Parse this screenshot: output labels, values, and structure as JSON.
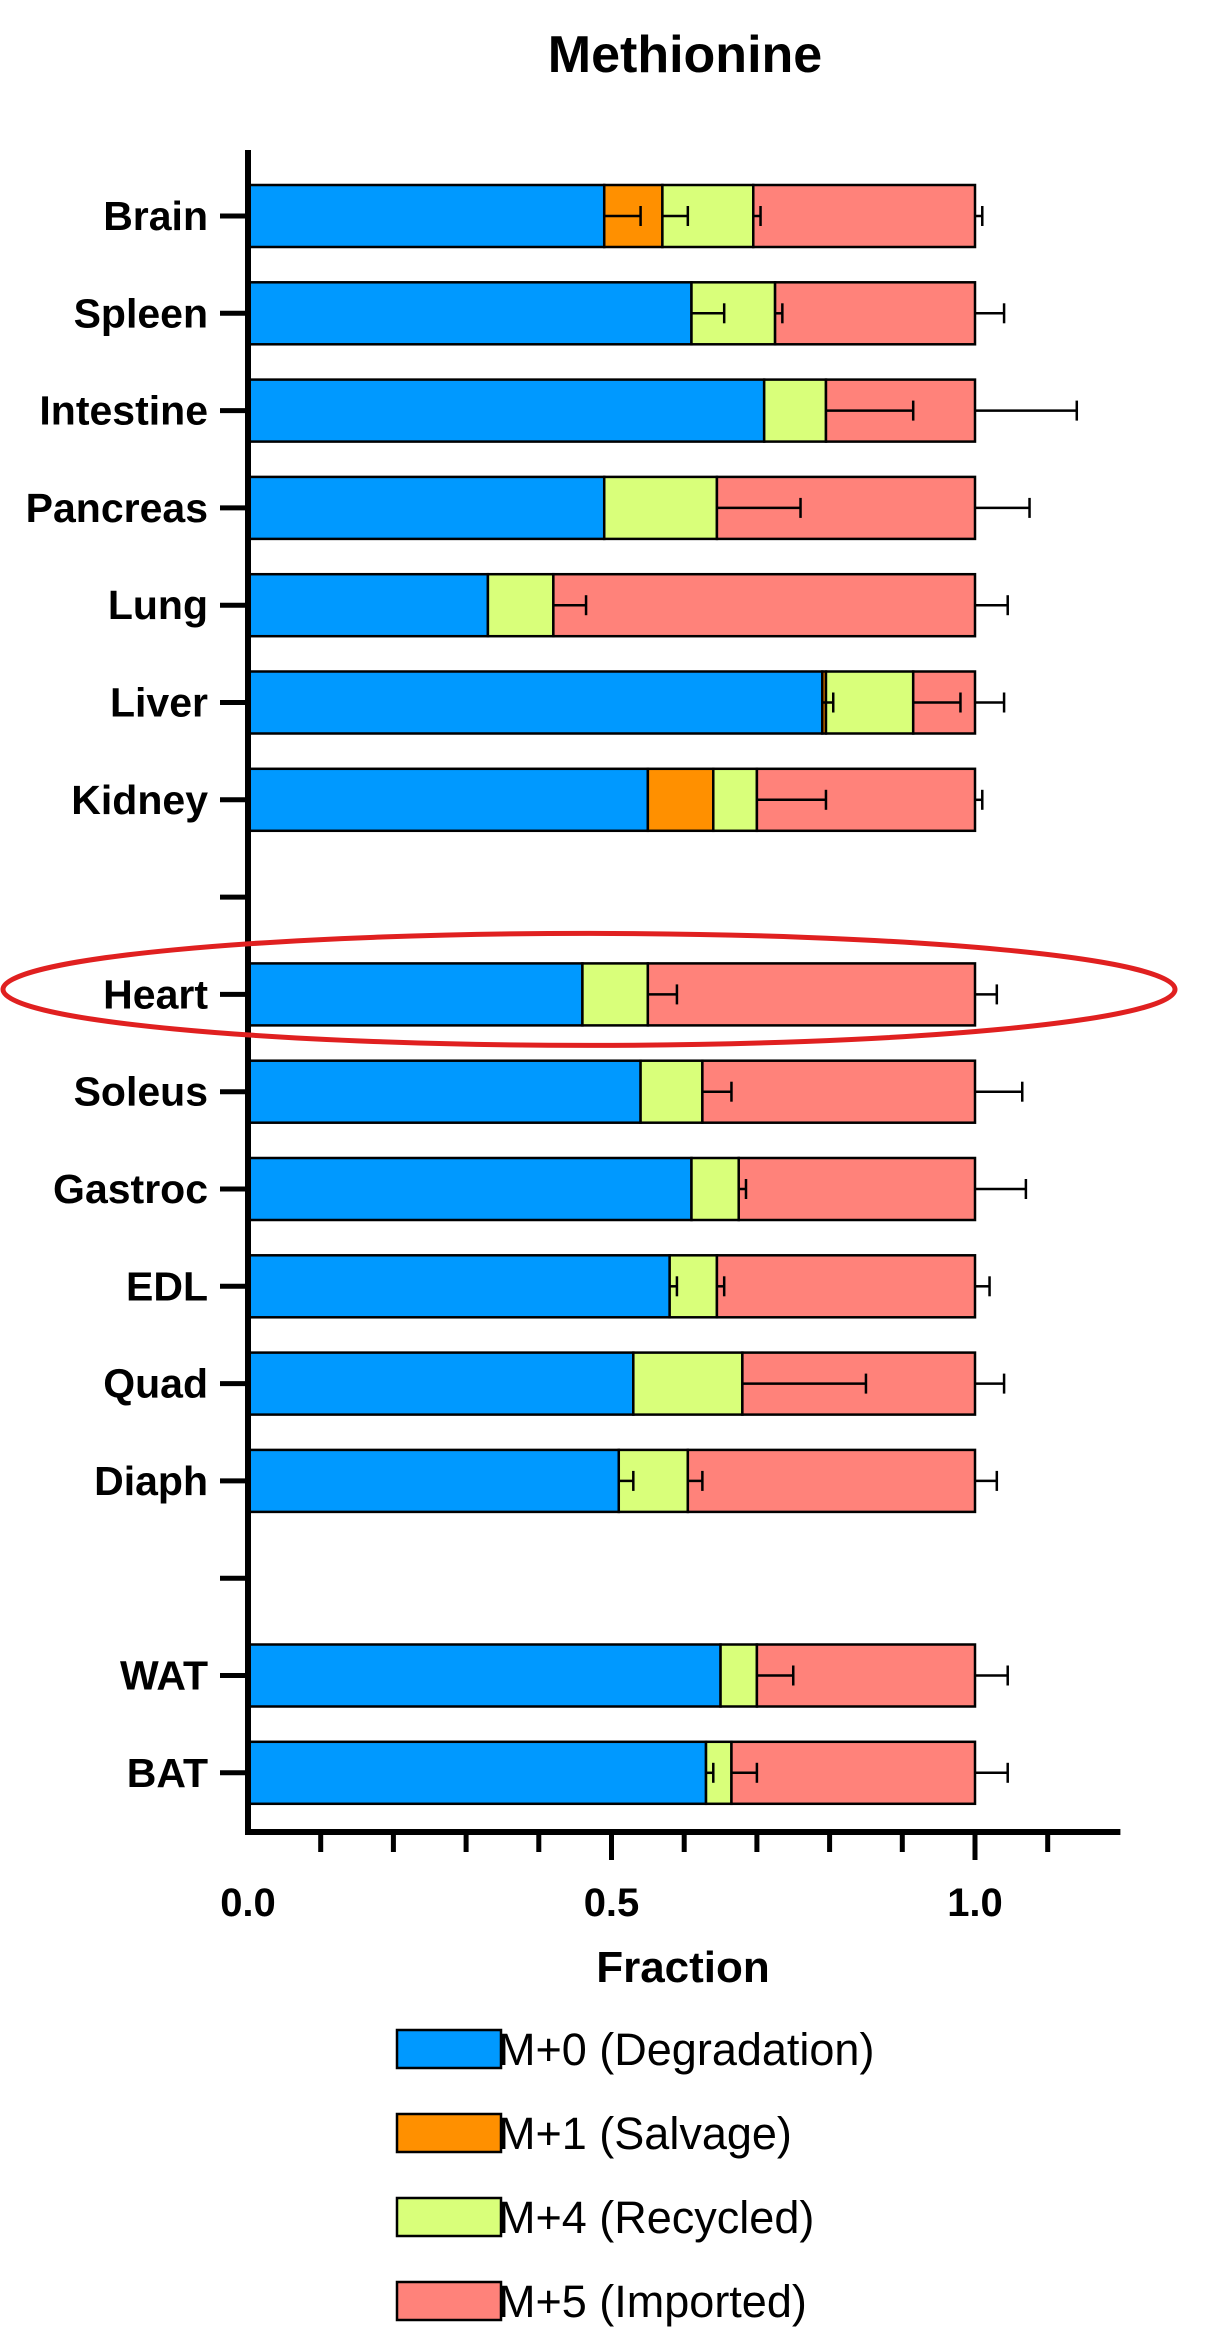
{
  "chart_data": {
    "type": "bar",
    "orientation": "horizontal",
    "stacked": true,
    "title": "Methionine",
    "xlabel": "Fraction",
    "ylabel": "",
    "xlim": [
      0,
      1.2
    ],
    "xticks": [
      0.0,
      0.5,
      1.0
    ],
    "xtick_labels": [
      "0.0",
      "0.5",
      "1.0"
    ],
    "minor_tick_step": 0.1,
    "grid": false,
    "legend_position": "bottom",
    "series": [
      {
        "name": "M+0 (Degradation)",
        "color": "#0099ff"
      },
      {
        "name": "M+1 (Salvage)",
        "color": "#ff9000"
      },
      {
        "name": "M+4 (Recycled)",
        "color": "#d9ff7a"
      },
      {
        "name": "M+5 (Imported)",
        "color": "#ff827a"
      }
    ],
    "groups": [
      [
        "Brain",
        "Spleen",
        "Intestine",
        "Pancreas",
        "Lung",
        "Liver",
        "Kidney"
      ],
      [
        "Heart",
        "Soleus",
        "Gastroc",
        "EDL",
        "Quad",
        "Diaph"
      ],
      [
        "WAT",
        "BAT"
      ]
    ],
    "rows": [
      {
        "category": "Brain",
        "values": [
          0.49,
          0.08,
          0.125,
          0.305
        ],
        "errors": [
          0.05,
          0.035,
          0.01,
          0.01
        ]
      },
      {
        "category": "Spleen",
        "values": [
          0.61,
          0.0,
          0.115,
          0.275
        ],
        "errors": [
          0.0,
          0.045,
          0.01,
          0.04
        ]
      },
      {
        "category": "Intestine",
        "values": [
          0.71,
          0.0,
          0.085,
          0.205
        ],
        "errors": [
          0.0,
          0.0,
          0.12,
          0.14
        ]
      },
      {
        "category": "Pancreas",
        "values": [
          0.49,
          0.0,
          0.155,
          0.355
        ],
        "errors": [
          0.0,
          0.0,
          0.115,
          0.075
        ]
      },
      {
        "category": "Lung",
        "values": [
          0.33,
          0.0,
          0.09,
          0.58
        ],
        "errors": [
          0.0,
          0.0,
          0.045,
          0.045
        ]
      },
      {
        "category": "Liver",
        "values": [
          0.79,
          0.005,
          0.12,
          0.085
        ],
        "errors": [
          0.015,
          0.0,
          0.065,
          0.04
        ]
      },
      {
        "category": "Kidney",
        "values": [
          0.55,
          0.09,
          0.06,
          0.3
        ],
        "errors": [
          0.0,
          0.0,
          0.095,
          0.01
        ]
      },
      {
        "category": "Heart",
        "values": [
          0.46,
          0.0,
          0.09,
          0.45
        ],
        "errors": [
          0.0,
          0.0,
          0.04,
          0.03
        ]
      },
      {
        "category": "Soleus",
        "values": [
          0.54,
          0.0,
          0.085,
          0.375
        ],
        "errors": [
          0.0,
          0.0,
          0.04,
          0.065
        ]
      },
      {
        "category": "Gastroc",
        "values": [
          0.61,
          0.0,
          0.065,
          0.325
        ],
        "errors": [
          0.0,
          0.0,
          0.01,
          0.07
        ]
      },
      {
        "category": "EDL",
        "values": [
          0.58,
          0.0,
          0.065,
          0.355
        ],
        "errors": [
          0.01,
          0.0,
          0.01,
          0.02
        ]
      },
      {
        "category": "Quad",
        "values": [
          0.53,
          0.0,
          0.15,
          0.32
        ],
        "errors": [
          0.0,
          0.0,
          0.17,
          0.04
        ]
      },
      {
        "category": "Diaph",
        "values": [
          0.51,
          0.0,
          0.095,
          0.395
        ],
        "errors": [
          0.0,
          0.02,
          0.02,
          0.03
        ]
      },
      {
        "category": "WAT",
        "values": [
          0.65,
          0.0,
          0.05,
          0.3
        ],
        "errors": [
          0.0,
          0.0,
          0.05,
          0.045
        ]
      },
      {
        "category": "BAT",
        "values": [
          0.63,
          0.0,
          0.035,
          0.335
        ],
        "errors": [
          0.01,
          0.0,
          0.035,
          0.045
        ]
      }
    ],
    "highlight": {
      "category": "Heart",
      "shape": "ellipse",
      "color": "#e02020"
    }
  }
}
